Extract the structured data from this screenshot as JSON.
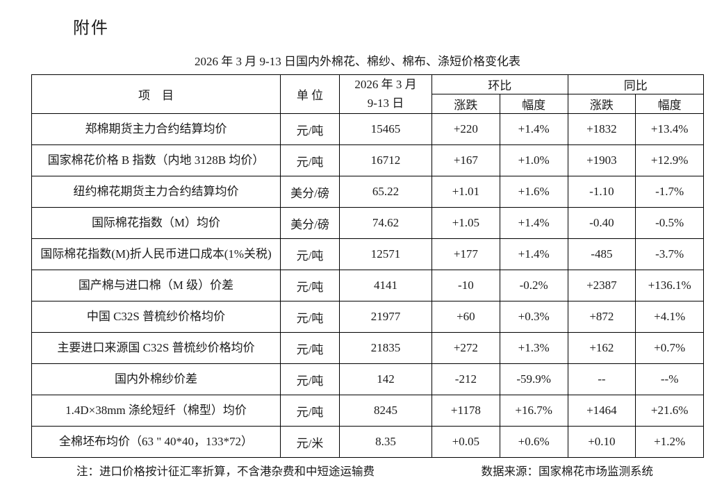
{
  "page": {
    "attachment_label": "附件",
    "title": "2026 年 3 月 9-13 日国内外棉花、棉纱、棉布、涤短价格变化表",
    "note": "注：进口价格按计征汇率折算，不含港杂费和中短途运输费",
    "source": "数据来源：国家棉花市场监测系统"
  },
  "table": {
    "headers": {
      "item": "项　目",
      "unit": "单 位",
      "period_line1": "2026 年 3 月",
      "period_line2": "9-13 日",
      "mom": "环比",
      "yoy": "同比",
      "change": "涨跌",
      "rate": "幅度"
    },
    "rows": [
      {
        "item": "郑棉期货主力合约结算均价",
        "unit": "元/吨",
        "value": "15465",
        "mom_change": "+220",
        "mom_rate": "+1.4%",
        "yoy_change": "+1832",
        "yoy_rate": "+13.4%"
      },
      {
        "item": "国家棉花价格 B 指数（内地 3128B 均价）",
        "unit": "元/吨",
        "value": "16712",
        "mom_change": "+167",
        "mom_rate": "+1.0%",
        "yoy_change": "+1903",
        "yoy_rate": "+12.9%"
      },
      {
        "item": "纽约棉花期货主力合约结算均价",
        "unit": "美分/磅",
        "value": "65.22",
        "mom_change": "+1.01",
        "mom_rate": "+1.6%",
        "yoy_change": "-1.10",
        "yoy_rate": "-1.7%"
      },
      {
        "item": "国际棉花指数（M）均价",
        "unit": "美分/磅",
        "value": "74.62",
        "mom_change": "+1.05",
        "mom_rate": "+1.4%",
        "yoy_change": "-0.40",
        "yoy_rate": "-0.5%"
      },
      {
        "item": "国际棉花指数(M)折人民币进口成本(1%关税)",
        "unit": "元/吨",
        "value": "12571",
        "mom_change": "+177",
        "mom_rate": "+1.4%",
        "yoy_change": "-485",
        "yoy_rate": "-3.7%"
      },
      {
        "item": "国产棉与进口棉（M 级）价差",
        "unit": "元/吨",
        "value": "4141",
        "mom_change": "-10",
        "mom_rate": "-0.2%",
        "yoy_change": "+2387",
        "yoy_rate": "+136.1%"
      },
      {
        "item": "中国 C32S 普梳纱价格均价",
        "unit": "元/吨",
        "value": "21977",
        "mom_change": "+60",
        "mom_rate": "+0.3%",
        "yoy_change": "+872",
        "yoy_rate": "+4.1%"
      },
      {
        "item": "主要进口来源国 C32S 普梳纱价格均价",
        "unit": "元/吨",
        "value": "21835",
        "mom_change": "+272",
        "mom_rate": "+1.3%",
        "yoy_change": "+162",
        "yoy_rate": "+0.7%"
      },
      {
        "item": "国内外棉纱价差",
        "unit": "元/吨",
        "value": "142",
        "mom_change": "-212",
        "mom_rate": "-59.9%",
        "yoy_change": "--",
        "yoy_rate": "--%"
      },
      {
        "item": "1.4D×38mm 涤纶短纤（棉型）均价",
        "unit": "元/吨",
        "value": "8245",
        "mom_change": "+1178",
        "mom_rate": "+16.7%",
        "yoy_change": "+1464",
        "yoy_rate": "+21.6%"
      },
      {
        "item": "全棉坯布均价（63 \" 40*40，133*72）",
        "unit": "元/米",
        "value": "8.35",
        "mom_change": "+0.05",
        "mom_rate": "+0.6%",
        "yoy_change": "+0.10",
        "yoy_rate": "+1.2%"
      }
    ]
  }
}
